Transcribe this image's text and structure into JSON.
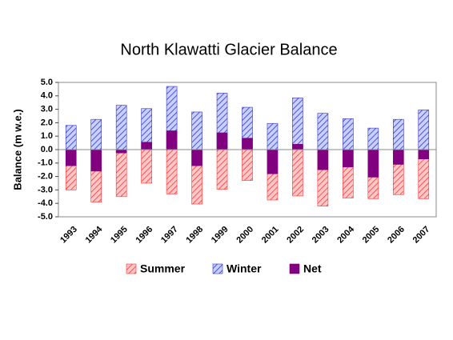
{
  "chart_data": {
    "type": "bar",
    "title": "North Klawatti Glacier Balance",
    "ylabel": "Balance (m w.e.)",
    "categories": [
      "1993",
      "1994",
      "1995",
      "1996",
      "1997",
      "1998",
      "1999",
      "2000",
      "2001",
      "2002",
      "2003",
      "2004",
      "2005",
      "2006",
      "2007"
    ],
    "series": [
      {
        "name": "Summer",
        "color": "#ff3333",
        "fill": "#ffc8c8",
        "pattern": "hatch",
        "values": [
          -3.0,
          -3.9,
          -3.5,
          -2.5,
          -3.3,
          -4.05,
          -2.95,
          -2.3,
          -3.75,
          -3.45,
          -4.2,
          -3.6,
          -3.65,
          -3.35,
          -3.65
        ]
      },
      {
        "name": "Winter",
        "color": "#3333cc",
        "fill": "#c8d0ff",
        "pattern": "hatch",
        "values": [
          1.8,
          2.25,
          3.3,
          3.05,
          4.7,
          2.8,
          4.2,
          3.15,
          1.95,
          3.85,
          2.7,
          2.3,
          1.6,
          2.25,
          2.95
        ]
      },
      {
        "name": "Net",
        "color": "#800080",
        "fill": "#800080",
        "pattern": "solid",
        "values": [
          -1.2,
          -1.6,
          -0.25,
          0.55,
          1.4,
          -1.2,
          1.25,
          0.85,
          -1.8,
          0.4,
          -1.5,
          -1.3,
          -2.05,
          -1.1,
          -0.7
        ]
      }
    ],
    "ylim": [
      -5,
      5
    ],
    "yticks": [
      {
        "value": 5,
        "label": "5.0"
      },
      {
        "value": 4,
        "label": "4.0"
      },
      {
        "value": 3,
        "label": "3.0"
      },
      {
        "value": 2,
        "label": "2.0"
      },
      {
        "value": 1,
        "label": "1.0"
      },
      {
        "value": 0,
        "label": "0.0"
      },
      {
        "value": -1,
        "label": "-1.0"
      },
      {
        "value": -2,
        "label": "-2.0"
      },
      {
        "value": -3,
        "label": "-3.0"
      },
      {
        "value": -4,
        "label": "-4.0"
      },
      {
        "value": -5,
        "label": "-5.0"
      }
    ],
    "grid": false,
    "legend": "bottom"
  }
}
